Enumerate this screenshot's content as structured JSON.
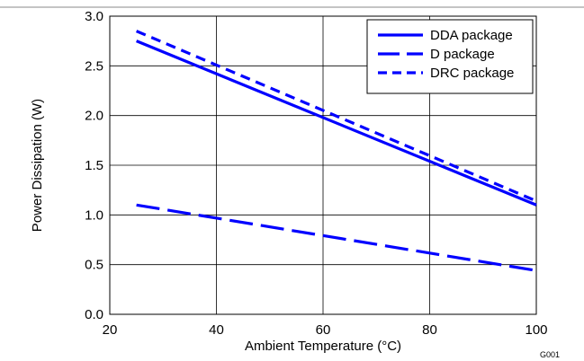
{
  "chart_data": {
    "type": "line",
    "title": "",
    "xlabel": "Ambient Temperature (°C)",
    "ylabel": "Power Dissipation (W)",
    "xlim": [
      20,
      100
    ],
    "ylim": [
      0,
      3
    ],
    "x_ticks": [
      20,
      40,
      60,
      80,
      100
    ],
    "y_ticks": [
      "0.0",
      "0.5",
      "1.0",
      "1.5",
      "2.0",
      "2.5",
      "3.0"
    ],
    "grid": true,
    "legend_position": "top-right",
    "figure_code": "G001",
    "series": [
      {
        "name": "DDA package",
        "style": "solid",
        "x": [
          25,
          100
        ],
        "y": [
          2.75,
          1.1
        ]
      },
      {
        "name": "D package",
        "style": "long-dash",
        "x": [
          25,
          100
        ],
        "y": [
          1.1,
          0.44
        ]
      },
      {
        "name": "DRC package",
        "style": "short-dash",
        "x": [
          25,
          100
        ],
        "y": [
          2.85,
          1.14
        ]
      }
    ],
    "line_color": "#0000FF"
  }
}
